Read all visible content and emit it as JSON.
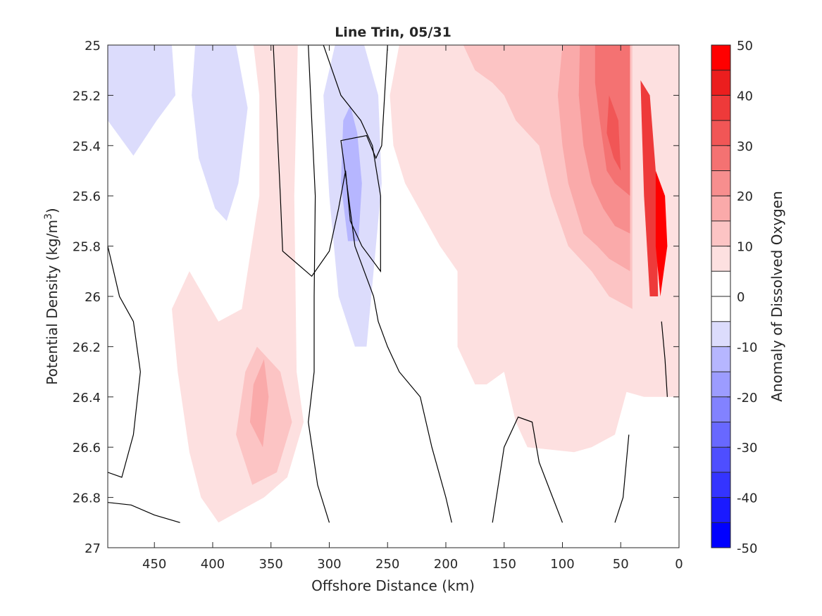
{
  "chart_data": {
    "type": "heatmap",
    "subtype": "filled-contour",
    "title": "Line Trin, 05/31",
    "xlabel": "Offshore Distance (km)",
    "ylabel_main": "Potential Density (kg/m",
    "ylabel_sup": "3",
    "ylabel_close": ")",
    "xlim": [
      490,
      0
    ],
    "x_reversed": true,
    "ylim": [
      25,
      27
    ],
    "y_reversed": true,
    "x_ticks": [
      450,
      400,
      350,
      300,
      250,
      200,
      150,
      100,
      50,
      0
    ],
    "x_tick_labels": [
      "450",
      "400",
      "350",
      "300",
      "250",
      "200",
      "150",
      "100",
      "50",
      "0"
    ],
    "y_ticks": [
      25,
      25.2,
      25.4,
      25.6,
      25.8,
      26,
      26.2,
      26.4,
      26.6,
      26.8,
      27
    ],
    "y_tick_labels": [
      "25",
      "25.2",
      "25.4",
      "25.6",
      "25.8",
      "26",
      "26.2",
      "26.4",
      "26.6",
      "26.8",
      "27"
    ],
    "colorbar": {
      "label": "Anomaly of Dissolved Oxygen",
      "range": [
        -50,
        50
      ],
      "tick_values": [
        50,
        40,
        30,
        20,
        10,
        0,
        -10,
        -20,
        -30,
        -40,
        -50
      ],
      "tick_labels": [
        "50",
        "40",
        "30",
        "20",
        "10",
        "0",
        "-10",
        "-20",
        "-30",
        "-40",
        "-50"
      ],
      "levels": [
        {
          "from": -50,
          "to": -45,
          "color": "#0000ff"
        },
        {
          "from": -45,
          "to": -40,
          "color": "#1a1aff"
        },
        {
          "from": -40,
          "to": -35,
          "color": "#3434ff"
        },
        {
          "from": -35,
          "to": -30,
          "color": "#4e4eff"
        },
        {
          "from": -30,
          "to": -25,
          "color": "#6868ff"
        },
        {
          "from": -25,
          "to": -20,
          "color": "#8282ff"
        },
        {
          "from": -20,
          "to": -15,
          "color": "#9c9cff"
        },
        {
          "from": -15,
          "to": -10,
          "color": "#b6b6ff"
        },
        {
          "from": -10,
          "to": -5,
          "color": "#dcdcfc"
        },
        {
          "from": -5,
          "to": 0,
          "color": "#ffffff"
        },
        {
          "from": 0,
          "to": 5,
          "color": "#ffffff"
        },
        {
          "from": 5,
          "to": 10,
          "color": "#fde0e0"
        },
        {
          "from": 10,
          "to": 15,
          "color": "#fcc4c4"
        },
        {
          "from": 15,
          "to": 20,
          "color": "#faaaaa"
        },
        {
          "from": 20,
          "to": 25,
          "color": "#f78e8e"
        },
        {
          "from": 25,
          "to": 30,
          "color": "#f47272"
        },
        {
          "from": 30,
          "to": 35,
          "color": "#f15656"
        },
        {
          "from": 35,
          "to": 40,
          "color": "#ee3a3a"
        },
        {
          "from": 40,
          "to": 45,
          "color": "#eb1e1e"
        },
        {
          "from": 45,
          "to": 50,
          "color": "#ff0000"
        }
      ]
    },
    "regions": [
      {
        "level": -7,
        "points": [
          [
            490,
            25
          ],
          [
            435,
            25
          ],
          [
            432,
            25.2
          ],
          [
            448,
            25.3
          ],
          [
            468,
            25.44
          ],
          [
            490,
            25.3
          ]
        ]
      },
      {
        "level": -7,
        "points": [
          [
            415,
            25
          ],
          [
            380,
            25
          ],
          [
            370,
            25.25
          ],
          [
            378,
            25.55
          ],
          [
            388,
            25.7
          ],
          [
            398,
            25.65
          ],
          [
            412,
            25.45
          ],
          [
            418,
            25.2
          ]
        ]
      },
      {
        "level": 7,
        "points": [
          [
            365,
            25
          ],
          [
            327,
            25
          ],
          [
            330,
            25.6
          ],
          [
            328,
            26.3
          ],
          [
            322,
            26.5
          ],
          [
            336,
            26.72
          ],
          [
            356,
            26.8
          ],
          [
            395,
            26.9
          ],
          [
            410,
            26.8
          ],
          [
            420,
            26.62
          ],
          [
            430,
            26.3
          ],
          [
            435,
            26.05
          ],
          [
            420,
            25.9
          ],
          [
            395,
            26.1
          ],
          [
            375,
            26.05
          ],
          [
            360,
            25.6
          ],
          [
            360,
            25.2
          ]
        ]
      },
      {
        "level": 12,
        "points": [
          [
            380,
            26.55
          ],
          [
            372,
            26.3
          ],
          [
            362,
            26.2
          ],
          [
            342,
            26.3
          ],
          [
            332,
            26.5
          ],
          [
            345,
            26.7
          ],
          [
            366,
            26.75
          ]
        ]
      },
      {
        "level": 17,
        "points": [
          [
            368,
            26.5
          ],
          [
            365,
            26.35
          ],
          [
            356,
            26.25
          ],
          [
            352,
            26.4
          ],
          [
            357,
            26.6
          ]
        ]
      },
      {
        "level": -7,
        "points": [
          [
            295,
            25
          ],
          [
            270,
            25
          ],
          [
            258,
            25.2
          ],
          [
            255,
            25.55
          ],
          [
            262,
            25.9
          ],
          [
            268,
            26.2
          ],
          [
            278,
            26.2
          ],
          [
            292,
            26.0
          ],
          [
            300,
            25.6
          ],
          [
            305,
            25.2
          ]
        ]
      },
      {
        "level": -12,
        "points": [
          [
            282,
            25.24
          ],
          [
            276,
            25.35
          ],
          [
            272,
            25.55
          ],
          [
            275,
            25.78
          ],
          [
            284,
            25.78
          ],
          [
            290,
            25.55
          ],
          [
            288,
            25.3
          ]
        ]
      },
      {
        "level": 7,
        "points": [
          [
            240,
            25
          ],
          [
            0,
            25
          ],
          [
            0,
            26.4
          ],
          [
            30,
            26.4
          ],
          [
            45,
            26.38
          ],
          [
            55,
            26.55
          ],
          [
            75,
            26.6
          ],
          [
            90,
            26.62
          ],
          [
            130,
            26.6
          ],
          [
            140,
            26.5
          ],
          [
            150,
            26.3
          ],
          [
            165,
            26.35
          ],
          [
            175,
            26.35
          ],
          [
            190,
            26.2
          ],
          [
            190,
            25.9
          ],
          [
            205,
            25.8
          ],
          [
            235,
            25.55
          ],
          [
            245,
            25.4
          ],
          [
            248,
            25.2
          ]
        ]
      },
      {
        "level": 12,
        "points": [
          [
            185,
            25
          ],
          [
            40,
            25
          ],
          [
            40,
            26.05
          ],
          [
            60,
            26.0
          ],
          [
            75,
            25.9
          ],
          [
            95,
            25.8
          ],
          [
            110,
            25.6
          ],
          [
            120,
            25.4
          ],
          [
            140,
            25.3
          ],
          [
            150,
            25.2
          ],
          [
            160,
            25.15
          ],
          [
            175,
            25.1
          ]
        ]
      },
      {
        "level": 17,
        "points": [
          [
            100,
            25
          ],
          [
            42,
            25
          ],
          [
            42,
            25.9
          ],
          [
            60,
            25.85
          ],
          [
            70,
            25.8
          ],
          [
            82,
            25.75
          ],
          [
            95,
            25.55
          ],
          [
            100,
            25.4
          ],
          [
            104,
            25.2
          ]
        ]
      },
      {
        "level": 22,
        "points": [
          [
            85,
            25
          ],
          [
            42,
            25
          ],
          [
            42,
            25.75
          ],
          [
            55,
            25.72
          ],
          [
            65,
            25.65
          ],
          [
            75,
            25.55
          ],
          [
            82,
            25.4
          ],
          [
            86,
            25.2
          ]
        ]
      },
      {
        "level": 27,
        "points": [
          [
            72,
            25
          ],
          [
            42,
            25
          ],
          [
            42,
            25.6
          ],
          [
            55,
            25.55
          ],
          [
            62,
            25.5
          ],
          [
            68,
            25.3
          ],
          [
            72,
            25.15
          ]
        ]
      },
      {
        "level": 32,
        "points": [
          [
            60,
            25.2
          ],
          [
            52,
            25.3
          ],
          [
            50,
            25.5
          ],
          [
            56,
            25.45
          ],
          [
            62,
            25.35
          ]
        ]
      },
      {
        "level": 38,
        "points": [
          [
            33,
            25.14
          ],
          [
            25,
            25.2
          ],
          [
            20,
            25.5
          ],
          [
            18,
            26.0
          ],
          [
            25,
            26.0
          ],
          [
            30,
            25.6
          ],
          [
            32,
            25.3
          ]
        ]
      },
      {
        "level": 48,
        "points": [
          [
            20,
            25.5
          ],
          [
            12,
            25.6
          ],
          [
            10,
            25.8
          ],
          [
            16,
            26.0
          ],
          [
            20,
            25.8
          ]
        ]
      }
    ],
    "contour_lines": [
      [
        [
          490,
          25.8
        ],
        [
          480,
          26.0
        ],
        [
          468,
          26.1
        ],
        [
          462,
          26.3
        ],
        [
          468,
          26.55
        ],
        [
          478,
          26.72
        ],
        [
          490,
          26.7
        ]
      ],
      [
        [
          490,
          26.82
        ],
        [
          470,
          26.83
        ],
        [
          450,
          26.87
        ],
        [
          428,
          26.9
        ]
      ],
      [
        [
          348,
          25
        ],
        [
          345,
          25.3
        ],
        [
          342,
          25.6
        ],
        [
          340,
          25.82
        ],
        [
          330,
          25.86
        ],
        [
          315,
          25.92
        ],
        [
          300,
          25.82
        ],
        [
          292,
          25.65
        ],
        [
          286,
          25.5
        ],
        [
          282,
          25.7
        ],
        [
          272,
          25.8
        ],
        [
          256,
          25.9
        ],
        [
          256,
          25.6
        ],
        [
          263,
          25.4
        ],
        [
          273,
          25.3
        ],
        [
          290,
          25.2
        ],
        [
          305,
          25
        ],
        [
          318,
          25
        ],
        [
          315,
          25.3
        ],
        [
          312,
          25.6
        ],
        [
          313,
          26.0
        ],
        [
          313,
          26.3
        ],
        [
          318,
          26.5
        ],
        [
          310,
          26.75
        ],
        [
          300,
          26.9
        ]
      ],
      [
        [
          250,
          25
        ],
        [
          255,
          25.4
        ],
        [
          260,
          25.45
        ],
        [
          268,
          25.36
        ],
        [
          290,
          25.38
        ],
        [
          285,
          25.55
        ],
        [
          278,
          25.8
        ],
        [
          270,
          25.9
        ],
        [
          262,
          26.0
        ],
        [
          258,
          26.1
        ],
        [
          250,
          26.2
        ],
        [
          240,
          26.3
        ],
        [
          222,
          26.4
        ],
        [
          212,
          26.6
        ],
        [
          200,
          26.8
        ],
        [
          195,
          26.9
        ]
      ],
      [
        [
          43,
          26.55
        ],
        [
          48,
          26.8
        ],
        [
          55,
          26.9
        ]
      ],
      [
        [
          100,
          26.9
        ],
        [
          110,
          26.78
        ],
        [
          120,
          26.66
        ],
        [
          126,
          26.5
        ],
        [
          138,
          26.48
        ],
        [
          150,
          26.6
        ],
        [
          160,
          26.9
        ]
      ],
      [
        [
          10,
          26.4
        ],
        [
          12,
          26.25
        ],
        [
          15,
          26.1
        ]
      ]
    ]
  }
}
